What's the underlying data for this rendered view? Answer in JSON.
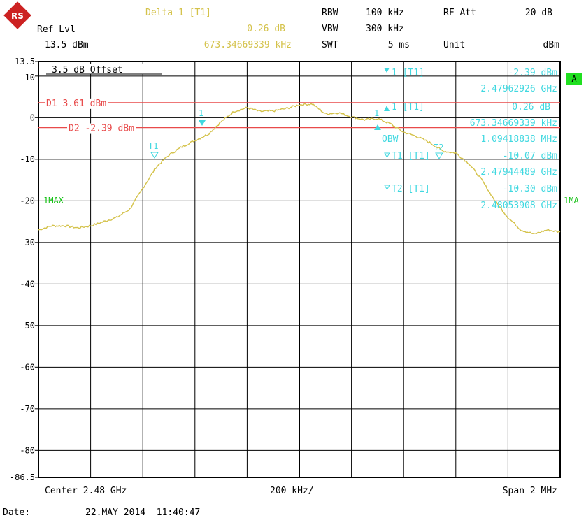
{
  "header": {
    "logo_letters": "RS",
    "ref_lvl_label": "Ref Lvl",
    "ref_lvl_value": "13.5 dBm",
    "delta_label": "Delta 1 [T1]",
    "delta_value_db": "0.26 dB",
    "delta_value_freq": "673.34669339 kHz",
    "rbw_label": "RBW",
    "rbw_value": "100 kHz",
    "vbw_label": "VBW",
    "vbw_value": "300 kHz",
    "swt_label": "SWT",
    "swt_value": "5 ms",
    "rf_att_label": "RF Att",
    "rf_att_value": "20 dB",
    "unit_label": "Unit",
    "unit_value": "dBm"
  },
  "footer": {
    "center": "Center 2.48 GHz",
    "div": "200 kHz/",
    "span": "Span 2 MHz",
    "date_label": "Date:",
    "date_value": "22.MAY 2014  11:40:47"
  },
  "markers_panel": [
    {
      "label": "1 [T1]",
      "value": "-2.39 dBm"
    },
    {
      "label": "",
      "value": "2.47962926 GHz"
    },
    {
      "label": "1 [T1]",
      "value": "0.26 dB"
    },
    {
      "label": "",
      "value": "673.34669339 kHz"
    },
    {
      "label": "OBW",
      "value": "1.09418838 MHz"
    },
    {
      "label": "T1 [T1]",
      "value": "-10.07 dBm"
    },
    {
      "label": "",
      "value": "2.47944489 GHz"
    },
    {
      "label": "T2 [T1]",
      "value": "-10.30 dBm"
    },
    {
      "label": "",
      "value": "2.48053908 GHz"
    }
  ],
  "labels": {
    "offset": "3.5 dB Offset",
    "d1": "D1 3.61 dBm",
    "d2": "D2 -2.39 dBm",
    "trace_left": "1MAX",
    "trace_right": "1MA",
    "a_box": "A",
    "marker_t1": "T1",
    "marker_t2": "T2",
    "marker_1": "1"
  },
  "colors": {
    "trace": "#d4c24a",
    "lines": "#e84a4a",
    "cyan": "#40d8e0",
    "green": "#10c010",
    "a_box": "#20e020",
    "header_yellow": "#d4c24a"
  },
  "chart_data": {
    "type": "line",
    "xlabel": "",
    "ylabel": "",
    "xlim": [
      2.479,
      2.481
    ],
    "ylim": [
      -86.5,
      13.5
    ],
    "yticks": [
      13.5,
      10,
      0,
      -10,
      -20,
      -30,
      -40,
      -50,
      -60,
      -70,
      -80,
      -86.5
    ],
    "ytick_labels": [
      "13.5",
      "10",
      "0",
      "-10",
      "-20",
      "-30",
      "-40",
      "-50",
      "-60",
      "-70",
      "-80",
      "-86.5"
    ],
    "grid": true,
    "hlines": [
      {
        "name": "D1",
        "y": 3.61
      },
      {
        "name": "D2",
        "y": -2.39
      }
    ],
    "series": [
      {
        "name": "1MAX",
        "x": [
          2.479,
          2.47905,
          2.4791,
          2.47915,
          2.4792,
          2.47925,
          2.4793,
          2.47935,
          2.4794,
          2.47945,
          2.4795,
          2.47955,
          2.4796,
          2.47965,
          2.4797,
          2.47975,
          2.4798,
          2.47985,
          2.4799,
          2.47995,
          2.48,
          2.48005,
          2.4801,
          2.48015,
          2.4802,
          2.48025,
          2.4803,
          2.48035,
          2.4804,
          2.48045,
          2.4805,
          2.48055,
          2.4806,
          2.48065,
          2.4807,
          2.48075,
          2.4808,
          2.48085,
          2.4809,
          2.48095,
          2.481
        ],
        "y": [
          -27,
          -26,
          -26,
          -26.5,
          -26,
          -25,
          -24,
          -22,
          -17,
          -12,
          -9,
          -7,
          -5.5,
          -4,
          -1,
          1.5,
          2.4,
          1.5,
          1.6,
          2.2,
          3.1,
          3.3,
          0.9,
          1.2,
          0.2,
          -0.5,
          -0.2,
          -1.5,
          -3.5,
          -4.5,
          -6,
          -8,
          -8.5,
          -11,
          -15,
          -20,
          -24,
          -27,
          -28,
          -27,
          -27.5
        ]
      }
    ]
  }
}
